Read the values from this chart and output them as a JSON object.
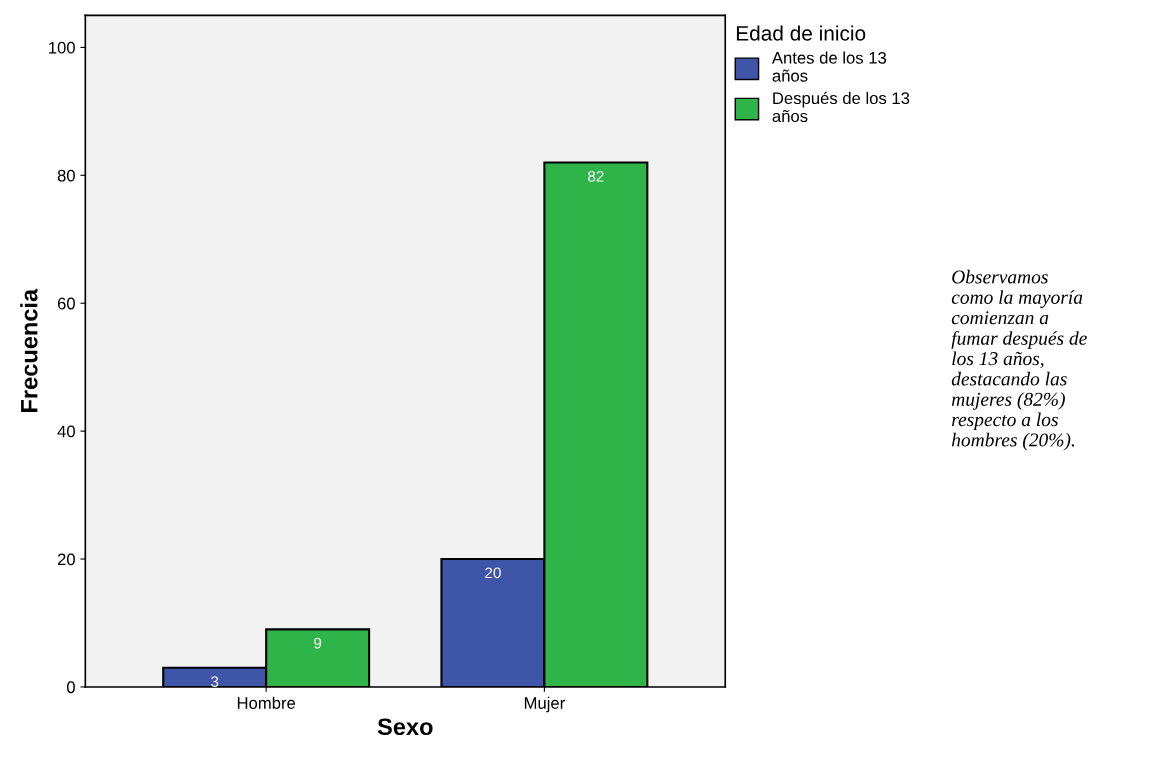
{
  "chart_data": {
    "type": "bar",
    "xlabel": "Sexo",
    "ylabel": "Frecuencia",
    "legend_title": "Edad de inicio",
    "categories": [
      "Hombre",
      "Mujer"
    ],
    "series": [
      {
        "name": "Antes de los 13\naños",
        "color": "#3f55a8",
        "values": [
          3,
          20
        ]
      },
      {
        "name": "Después de los 13\naños",
        "color": "#2fb44a",
        "values": [
          9,
          82
        ]
      }
    ],
    "ylim": [
      0,
      105
    ],
    "yticks": [
      0,
      20,
      40,
      60,
      80,
      100
    ],
    "grid": false,
    "legend": "top right",
    "data_labels": true,
    "annotations": [
      "Observamos\ncomo la mayoría\ncomienzan a\nfumar después de\nlos 13 años,\ndestacando las\nmujeres (82%)\nrespecto a los\nhombres (20%)."
    ]
  }
}
